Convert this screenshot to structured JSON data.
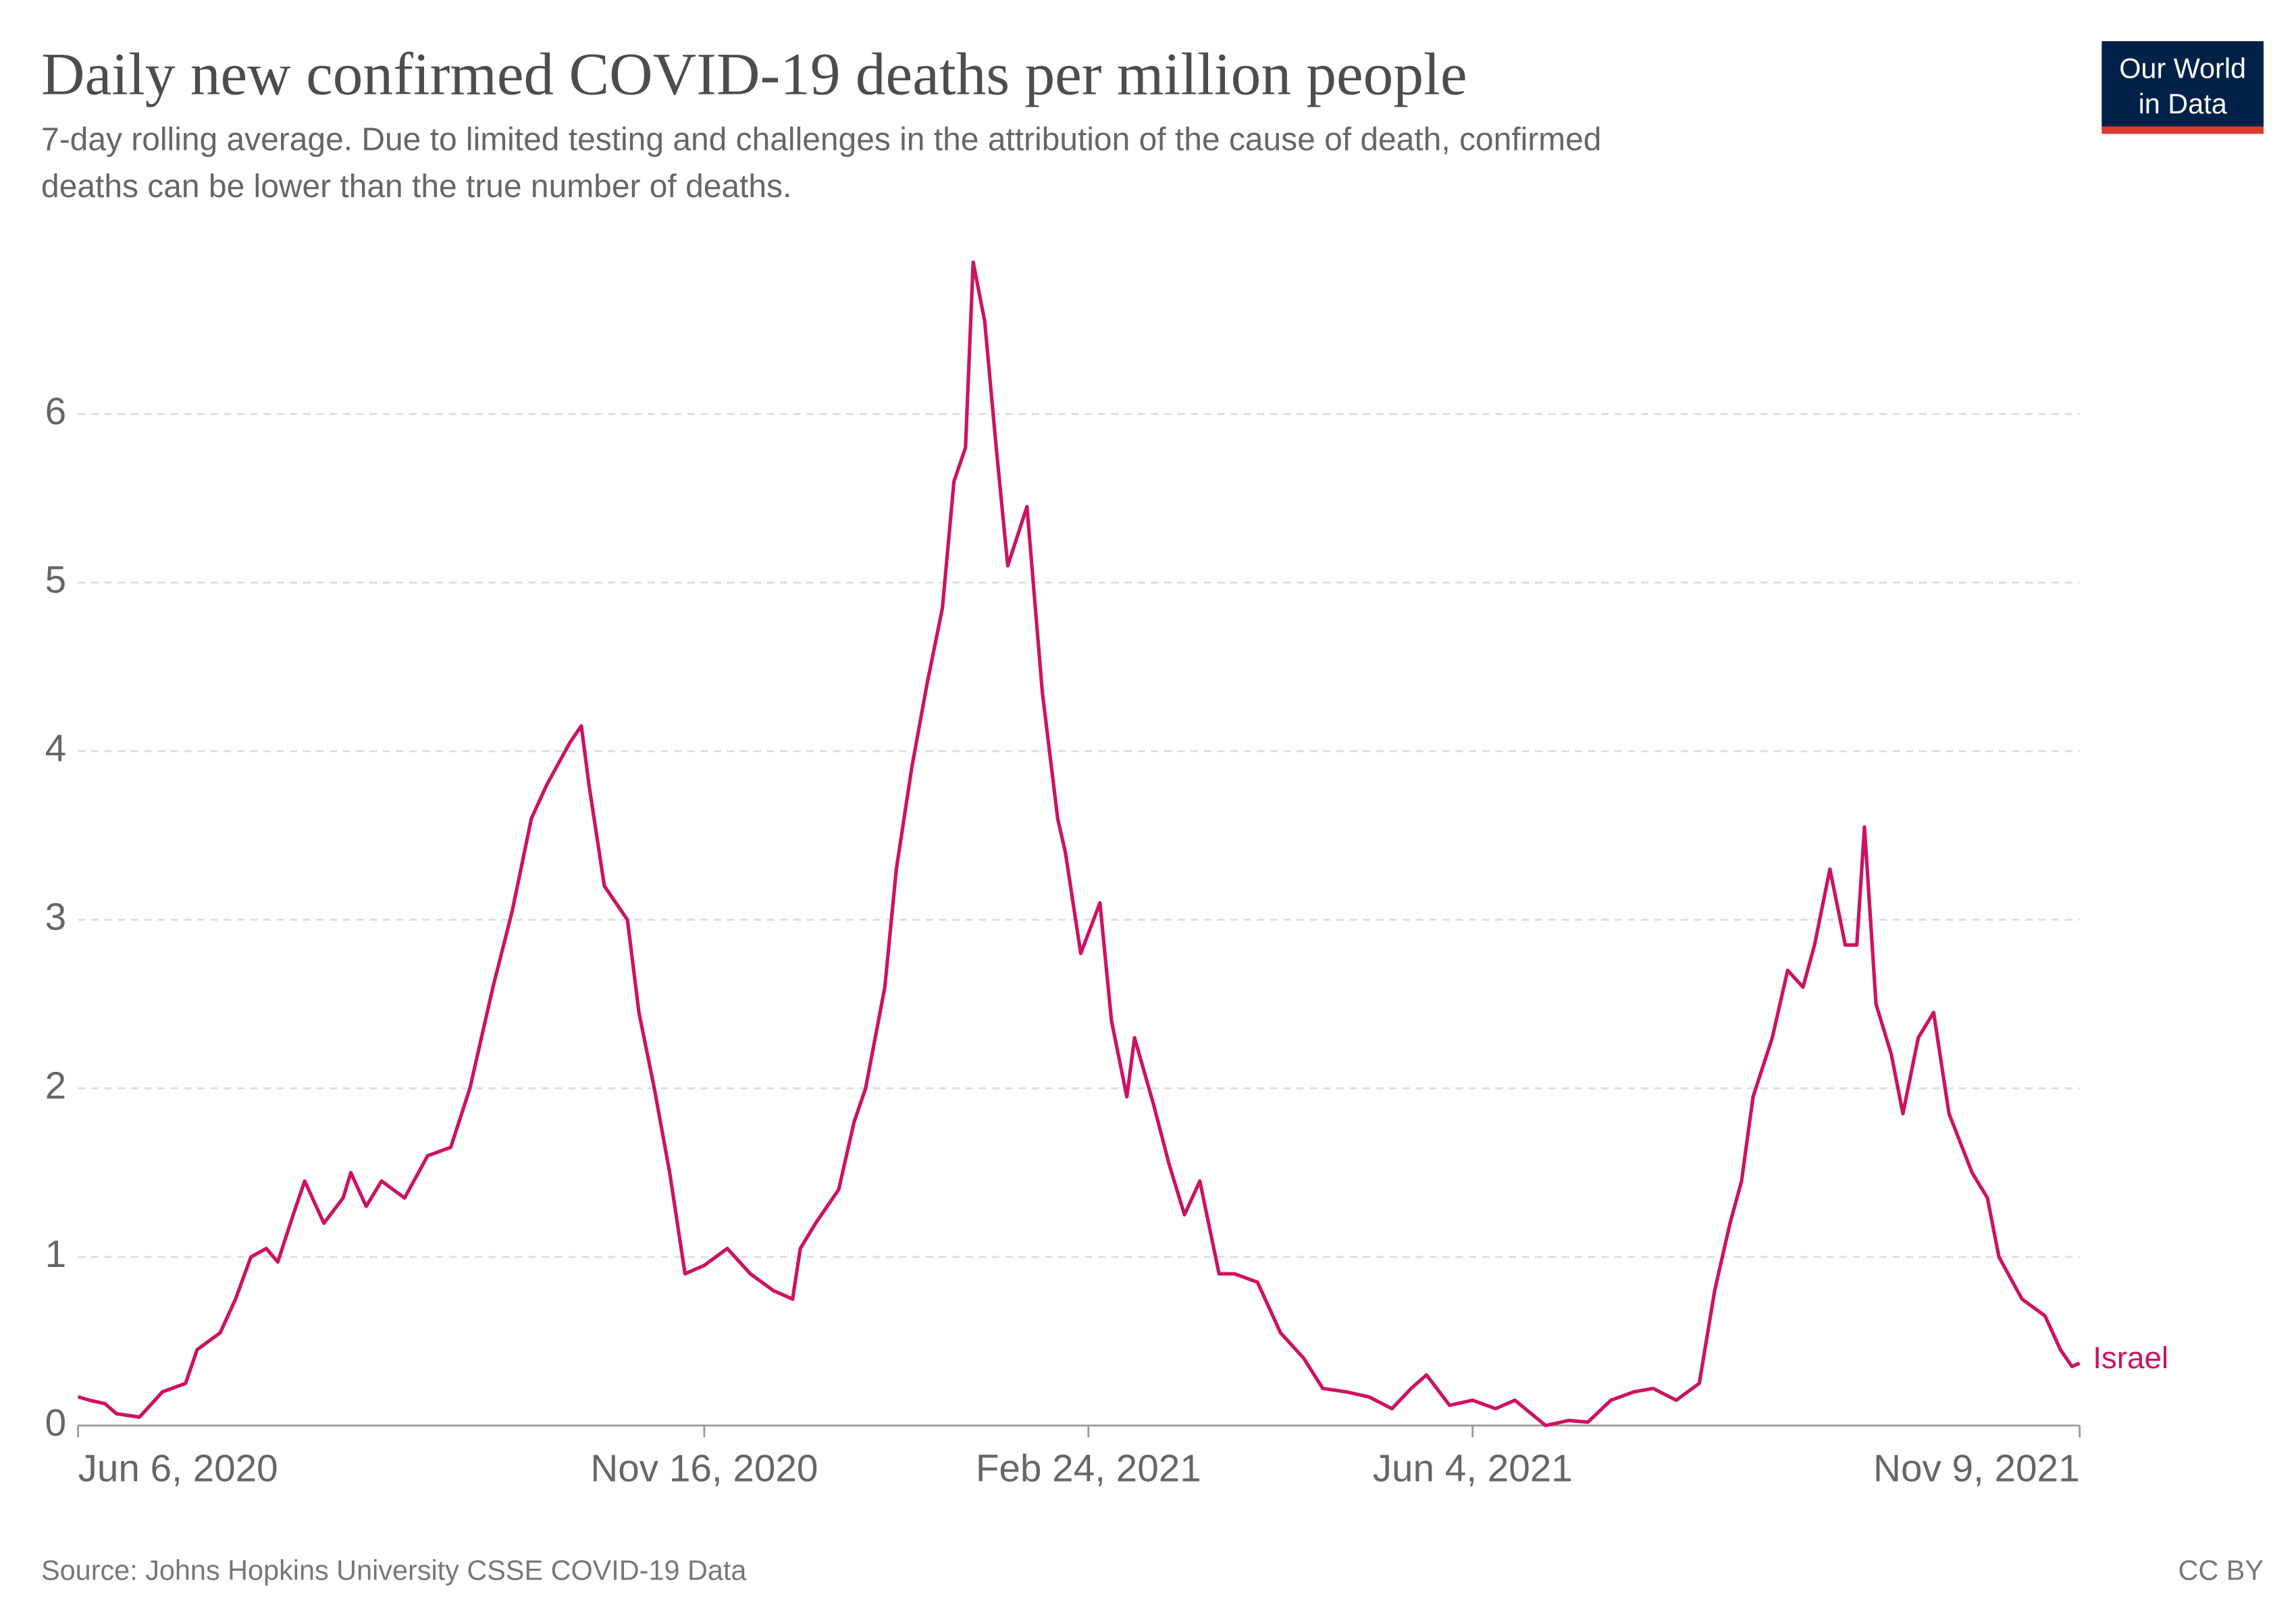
{
  "chart_data": {
    "type": "line",
    "title": "Daily new confirmed COVID-19 deaths per million people",
    "subtitle": [
      "7-day rolling average. Due to limited testing and challenges in the attribution of the cause of death, confirmed",
      "deaths can be lower than the true number of deaths."
    ],
    "logo": [
      "Our World",
      "in Data"
    ],
    "source": "Source: Johns Hopkins University CSSE COVID-19 Data",
    "license": "CC BY",
    "x": [
      "2020-06-06",
      "2020-06-09",
      "2020-06-13",
      "2020-06-16",
      "2020-06-22",
      "2020-06-28",
      "2020-07-04",
      "2020-07-07",
      "2020-07-13",
      "2020-07-17",
      "2020-07-21",
      "2020-07-25",
      "2020-07-28",
      "2020-08-01",
      "2020-08-04",
      "2020-08-09",
      "2020-08-14",
      "2020-08-16",
      "2020-08-20",
      "2020-08-24",
      "2020-08-30",
      "2020-09-05",
      "2020-09-11",
      "2020-09-16",
      "2020-09-22",
      "2020-09-27",
      "2020-10-02",
      "2020-10-06",
      "2020-10-12",
      "2020-10-15",
      "2020-10-17",
      "2020-10-21",
      "2020-10-27",
      "2020-10-30",
      "2020-11-03",
      "2020-11-07",
      "2020-11-11",
      "2020-11-16",
      "2020-11-22",
      "2020-11-28",
      "2020-12-04",
      "2020-12-09",
      "2020-12-11",
      "2020-12-15",
      "2020-12-21",
      "2020-12-25",
      "2020-12-28",
      "2021-01-02",
      "2021-01-05",
      "2021-01-09",
      "2021-01-13",
      "2021-01-17",
      "2021-01-20",
      "2021-01-23",
      "2021-01-25",
      "2021-01-28",
      "2021-01-31",
      "2021-02-03",
      "2021-02-08",
      "2021-02-12",
      "2021-02-16",
      "2021-02-18",
      "2021-02-22",
      "2021-02-27",
      "2021-03-02",
      "2021-03-06",
      "2021-03-08",
      "2021-03-13",
      "2021-03-17",
      "2021-03-21",
      "2021-03-25",
      "2021-03-30",
      "2021-04-03",
      "2021-04-09",
      "2021-04-15",
      "2021-04-21",
      "2021-04-26",
      "2021-05-02",
      "2021-05-08",
      "2021-05-14",
      "2021-05-19",
      "2021-05-23",
      "2021-05-29",
      "2021-06-04",
      "2021-06-10",
      "2021-06-15",
      "2021-06-23",
      "2021-06-29",
      "2021-07-04",
      "2021-07-10",
      "2021-07-16",
      "2021-07-21",
      "2021-07-27",
      "2021-08-02",
      "2021-08-06",
      "2021-08-10",
      "2021-08-13",
      "2021-08-16",
      "2021-08-21",
      "2021-08-25",
      "2021-08-29",
      "2021-09-01",
      "2021-09-05",
      "2021-09-09",
      "2021-09-12",
      "2021-09-14",
      "2021-09-17",
      "2021-09-21",
      "2021-09-24",
      "2021-09-28",
      "2021-10-02",
      "2021-10-06",
      "2021-10-12",
      "2021-10-16",
      "2021-10-19",
      "2021-10-25",
      "2021-10-31",
      "2021-11-04",
      "2021-11-07",
      "2021-11-09"
    ],
    "series": [
      {
        "name": "Israel",
        "color": "#ce1262",
        "values": [
          0.17,
          0.15,
          0.13,
          0.07,
          0.05,
          0.2,
          0.25,
          0.45,
          0.55,
          0.75,
          1.0,
          1.05,
          0.97,
          1.25,
          1.45,
          1.2,
          1.35,
          1.5,
          1.3,
          1.45,
          1.35,
          1.6,
          1.65,
          2.0,
          2.6,
          3.05,
          3.6,
          3.8,
          4.05,
          4.15,
          3.8,
          3.2,
          3.0,
          2.45,
          2.0,
          1.5,
          0.9,
          0.95,
          1.05,
          0.9,
          0.8,
          0.75,
          1.05,
          1.2,
          1.4,
          1.8,
          2.0,
          2.6,
          3.3,
          3.9,
          4.4,
          4.85,
          5.6,
          5.8,
          6.9,
          6.55,
          5.8,
          5.1,
          5.45,
          4.35,
          3.6,
          3.4,
          2.8,
          3.1,
          2.4,
          1.95,
          2.3,
          1.9,
          1.55,
          1.25,
          1.45,
          0.9,
          0.9,
          0.85,
          0.55,
          0.4,
          0.22,
          0.2,
          0.17,
          0.1,
          0.22,
          0.3,
          0.12,
          0.15,
          0.1,
          0.15,
          0.0,
          0.03,
          0.02,
          0.15,
          0.2,
          0.22,
          0.15,
          0.25,
          0.8,
          1.2,
          1.45,
          1.95,
          2.3,
          2.7,
          2.6,
          2.85,
          3.3,
          2.85,
          2.85,
          3.55,
          2.5,
          2.2,
          1.85,
          2.3,
          2.45,
          1.85,
          1.5,
          1.35,
          1.0,
          0.75,
          0.65,
          0.45,
          0.35,
          0.37
        ]
      }
    ],
    "xlim": [
      "2020-06-06",
      "2021-11-09"
    ],
    "xticks": [
      {
        "value": "2020-06-06",
        "label": "Jun 6, 2020"
      },
      {
        "value": "2020-11-16",
        "label": "Nov 16, 2020"
      },
      {
        "value": "2021-02-24",
        "label": "Feb 24, 2021"
      },
      {
        "value": "2021-06-04",
        "label": "Jun 4, 2021"
      },
      {
        "value": "2021-11-09",
        "label": "Nov 9, 2021"
      }
    ],
    "ylim": [
      0,
      7
    ],
    "yticks": [
      0,
      1,
      2,
      3,
      4,
      5,
      6
    ],
    "grid": true
  }
}
